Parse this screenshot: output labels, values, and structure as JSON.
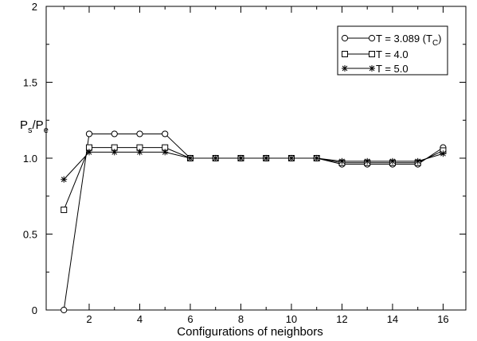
{
  "chart_data": {
    "type": "line",
    "xlabel": "Configurations of neighbors",
    "ylabel": "P_s/P_e",
    "xlim": [
      0.3,
      16.9
    ],
    "ylim": [
      0,
      2
    ],
    "x_ticks": [
      2,
      4,
      6,
      8,
      10,
      12,
      14,
      16
    ],
    "x_tick_labels": [
      "2",
      "4",
      "6",
      "8",
      "10",
      "12",
      "14",
      "16"
    ],
    "y_ticks": [
      0,
      0.5,
      1.0,
      1.5,
      2
    ],
    "y_tick_labels": [
      "0",
      "0.5",
      "1.0",
      "1.5",
      "2"
    ],
    "grid": false,
    "legend_position": "top-right",
    "x": [
      1,
      2,
      3,
      4,
      5,
      6,
      7,
      8,
      9,
      10,
      11,
      12,
      13,
      14,
      15,
      16
    ],
    "series": [
      {
        "name": "T = 3.089 (T_C)",
        "marker": "circle",
        "values": [
          0.0,
          1.16,
          1.16,
          1.16,
          1.16,
          1.0,
          1.0,
          1.0,
          1.0,
          1.0,
          1.0,
          0.96,
          0.96,
          0.96,
          0.96,
          1.07
        ]
      },
      {
        "name": "T = 4.0",
        "marker": "square",
        "values": [
          0.66,
          1.07,
          1.07,
          1.07,
          1.07,
          1.0,
          1.0,
          1.0,
          1.0,
          1.0,
          1.0,
          0.97,
          0.97,
          0.97,
          0.97,
          1.05
        ]
      },
      {
        "name": "T = 5.0",
        "marker": "star",
        "values": [
          0.86,
          1.04,
          1.04,
          1.04,
          1.04,
          1.0,
          1.0,
          1.0,
          1.0,
          1.0,
          1.0,
          0.98,
          0.98,
          0.98,
          0.98,
          1.03
        ]
      }
    ]
  },
  "legend": {
    "entries": [
      {
        "main": "T = 3.089 (T",
        "sub": "C",
        "tail": ")"
      },
      {
        "main": "T = 4.0",
        "sub": "",
        "tail": ""
      },
      {
        "main": "T = 5.0",
        "sub": "",
        "tail": ""
      }
    ]
  },
  "ylabel_parts": {
    "p1": "P",
    "s1": "s",
    "slash": "/P",
    "s2": "e"
  }
}
